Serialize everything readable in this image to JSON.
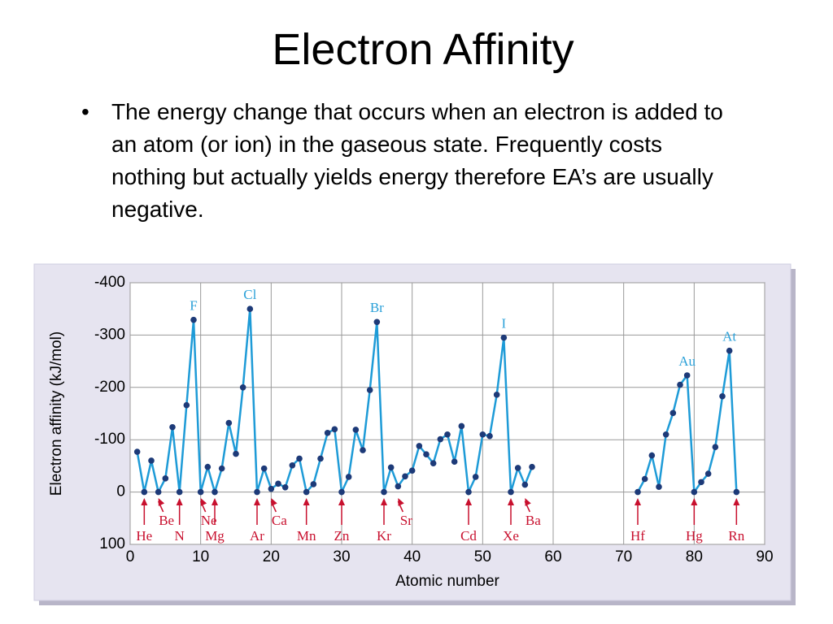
{
  "slide": {
    "title": "Electron Affinity",
    "bullet": "The energy change that occurs when an electron is added to an atom (or ion) in the gaseous state. Frequently costs nothing but actually yields energy therefore EA’s are usually negative."
  },
  "chart_data": {
    "type": "line",
    "x_label": "Atomic number",
    "y_label": "Electron affinity (kJ/mol)",
    "x": [
      1,
      2,
      3,
      4,
      5,
      6,
      7,
      8,
      9,
      10,
      11,
      12,
      13,
      14,
      15,
      16,
      17,
      18,
      19,
      20,
      21,
      22,
      23,
      24,
      25,
      26,
      27,
      28,
      29,
      30,
      31,
      32,
      33,
      34,
      35,
      36,
      37,
      38,
      39,
      40,
      41,
      42,
      43,
      44,
      45,
      46,
      47,
      48,
      49,
      50,
      51,
      52,
      53,
      54,
      55,
      56,
      57,
      58,
      59,
      60,
      61,
      62,
      63,
      64,
      65,
      66,
      67,
      68,
      69,
      70,
      71,
      72,
      73,
      74,
      75,
      76,
      77,
      78,
      79,
      80,
      81,
      82,
      83,
      84,
      85,
      86
    ],
    "series": [
      {
        "name": "Electron affinity",
        "color": "#1e9bd7",
        "marker_color": "#1d3a78",
        "values": [
          -77,
          0,
          -60,
          0,
          -26,
          -124,
          0,
          -166,
          -329,
          0,
          -48,
          0,
          -45,
          -132,
          -73,
          -200,
          -350,
          0,
          -45,
          -6,
          -16,
          -9,
          -51,
          -64,
          0,
          -15,
          -64,
          -113,
          -120,
          0,
          -29,
          -119,
          -80,
          -195,
          -325,
          0,
          -47,
          -11,
          -30,
          -41,
          -88,
          -72,
          -55,
          -101,
          -110,
          -58,
          -126,
          0,
          -29,
          -110,
          -107,
          -186,
          -295,
          0,
          -46,
          -14,
          -48,
          null,
          null,
          null,
          null,
          null,
          null,
          null,
          null,
          null,
          null,
          null,
          null,
          null,
          null,
          0,
          -25,
          -70,
          -10,
          -110,
          -151,
          -205,
          -223,
          0,
          -19,
          -35,
          -86,
          -183,
          -270,
          0
        ]
      }
    ],
    "xlim": [
      0,
      90
    ],
    "xticks": [
      0,
      10,
      20,
      30,
      40,
      50,
      60,
      70,
      80,
      90
    ],
    "ylim": [
      100,
      -400
    ],
    "yticks": [
      -400,
      -300,
      -200,
      -100,
      0,
      100
    ],
    "grid": true,
    "peak_labels": {
      "color": "#2aa0d8",
      "items": [
        {
          "label": "F",
          "x": 9
        },
        {
          "label": "Cl",
          "x": 17
        },
        {
          "label": "Br",
          "x": 35
        },
        {
          "label": "I",
          "x": 53
        },
        {
          "label": "Au",
          "x": 79
        },
        {
          "label": "At",
          "x": 85
        }
      ]
    },
    "arrow_labels": {
      "color": "#c8102e",
      "items": [
        {
          "label": "He",
          "x": 2
        },
        {
          "label": "Be",
          "x": 4
        },
        {
          "label": "N",
          "x": 7
        },
        {
          "label": "Ne",
          "x": 10
        },
        {
          "label": "Mg",
          "x": 12
        },
        {
          "label": "Ar",
          "x": 18
        },
        {
          "label": "Ca",
          "x": 20
        },
        {
          "label": "Mn",
          "x": 25
        },
        {
          "label": "Zn",
          "x": 30
        },
        {
          "label": "Kr",
          "x": 36
        },
        {
          "label": "Sr",
          "x": 38
        },
        {
          "label": "Cd",
          "x": 48
        },
        {
          "label": "Xe",
          "x": 54
        },
        {
          "label": "Ba",
          "x": 56
        },
        {
          "label": "Hf",
          "x": 72
        },
        {
          "label": "Hg",
          "x": 80
        },
        {
          "label": "Rn",
          "x": 86
        }
      ]
    }
  }
}
